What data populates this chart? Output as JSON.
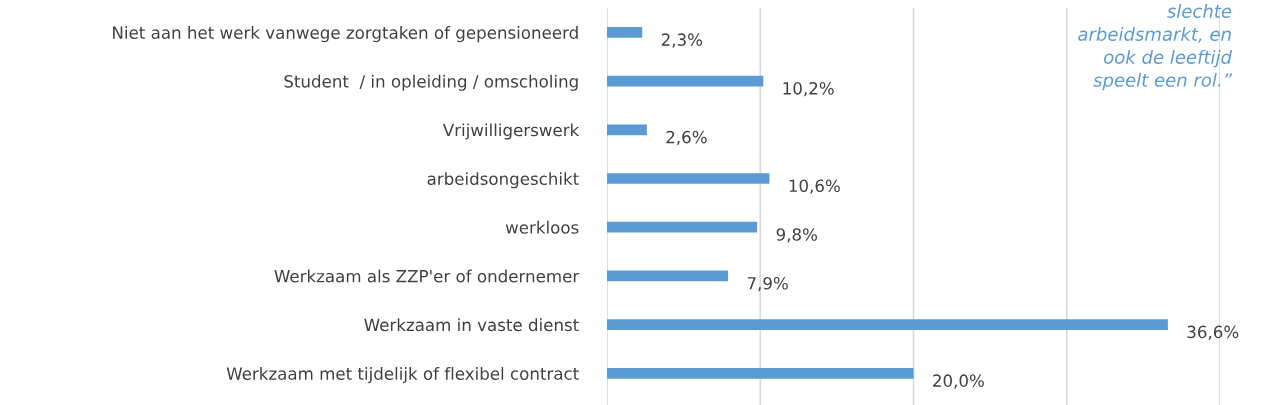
{
  "chart_data": {
    "type": "bar",
    "orientation": "horizontal",
    "categories": [
      "Niet aan het werk vanwege zorgtaken of gepensioneerd",
      "Student  / in opleiding / omscholing",
      "Vrijwilligerswerk",
      "arbeidsongeschikt",
      "werkloos",
      "Werkzaam als ZZP'er of ondernemer",
      "Werkzaam in vaste dienst",
      "Werkzaam met tijdelijk of flexibel contract"
    ],
    "values": [
      2.3,
      10.2,
      2.6,
      10.6,
      9.8,
      7.9,
      36.6,
      20.0
    ],
    "value_labels": [
      "2,3%",
      "10,2%",
      "2,6%",
      "10,6%",
      "9,8%",
      "7,9%",
      "36,6%",
      "20,0%"
    ],
    "color": "#5b9bd5",
    "xlim": [
      0,
      40
    ],
    "xticks": [
      {
        "value": 0,
        "label": null
      },
      {
        "value": 10,
        "label": null
      },
      {
        "value": 20,
        "label": null
      },
      {
        "value": 30,
        "label": null
      },
      {
        "value": 40,
        "label": null
      }
    ],
    "tick_labels": "y",
    "grid": "x",
    "legend": false,
    "annotations": [
      "slechte\narbeidsmarkt, en\nook de leeftijd\nspeelt een rol.”"
    ]
  }
}
